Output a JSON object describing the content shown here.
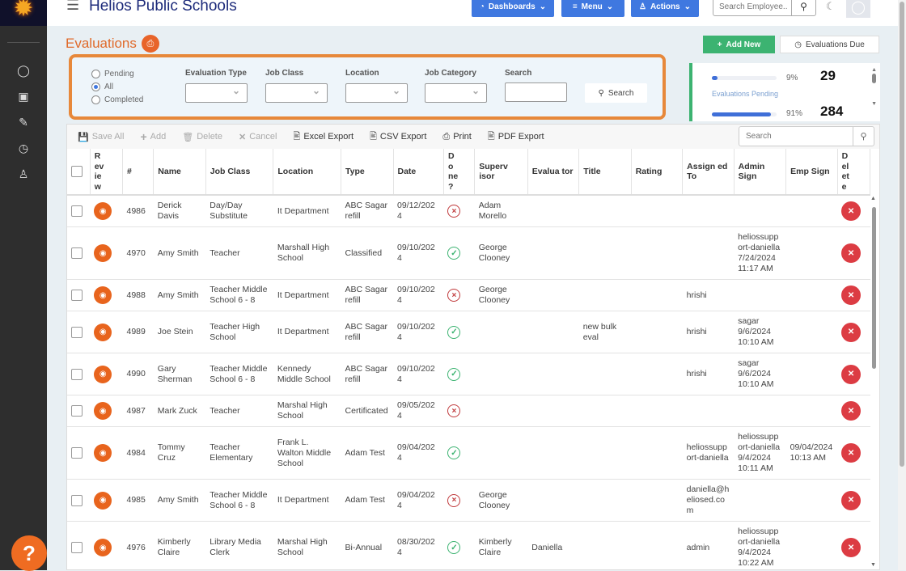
{
  "app": {
    "title": "Helios Public Schools",
    "accent": "#3f78e0",
    "brand_orange": "#e8641d"
  },
  "sidebar": {
    "items": [
      {
        "icon": "user-icon"
      },
      {
        "icon": "briefcase-icon"
      },
      {
        "icon": "edit-icon"
      },
      {
        "icon": "clock-icon"
      },
      {
        "icon": "users-icon"
      }
    ],
    "help": "?"
  },
  "header": {
    "dashboards": "Dashboards",
    "menu": "Menu",
    "actions": "Actions",
    "search_placeholder": "Search Employee.."
  },
  "page": {
    "title": "Evaluations",
    "add_new": "Add New",
    "evaluations_due": "Evaluations Due"
  },
  "filters": {
    "radios": [
      {
        "label": "Pending",
        "checked": false
      },
      {
        "label": "All",
        "checked": true
      },
      {
        "label": "Completed",
        "checked": false
      }
    ],
    "evaluation_type": "Evaluation Type",
    "job_class": "Job Class",
    "location": "Location",
    "job_category": "Job Category",
    "search": "Search",
    "search_button": "Search"
  },
  "stats": {
    "pending_pct_label": "9%",
    "pending_pct": 9,
    "pending_count": "29",
    "pending_label": "Evaluations Pending",
    "second_pct_label": "91%",
    "second_pct": 91,
    "second_count": "284"
  },
  "toolbar": {
    "save_all": "Save All",
    "add": "Add",
    "delete": "Delete",
    "cancel": "Cancel",
    "excel": "Excel Export",
    "csv": "CSV Export",
    "print": "Print",
    "pdf": "PDF Export",
    "search_placeholder": "Search"
  },
  "columns": [
    "R ev ie w",
    "#",
    "Name",
    "Job Class",
    "Location",
    "Type",
    "Date",
    "D o ne ?",
    "Superv isor",
    "Evalua tor",
    "Title",
    "Rating",
    "Assign ed To",
    "Admin Sign",
    "Emp Sign",
    "D el et e"
  ],
  "rows": [
    {
      "id": "4986",
      "name": "Derick Davis",
      "job_class": "Day/Day Substitute",
      "location": "It Department",
      "type": "ABC Sagar refill",
      "date": "09/12/2024",
      "done": false,
      "supervisor": "Adam Morello",
      "evaluator": "",
      "title": "",
      "rating": "",
      "assigned_to": "",
      "admin_sign": "",
      "emp_sign": ""
    },
    {
      "id": "4970",
      "name": "Amy Smith",
      "job_class": "Teacher",
      "location": "Marshall High School",
      "type": "Classified",
      "date": "09/10/2024",
      "done": true,
      "supervisor": "George Clooney",
      "evaluator": "",
      "title": "",
      "rating": "",
      "assigned_to": "",
      "admin_sign": "heliossupport-daniella 7/24/2024 11:17 AM",
      "emp_sign": ""
    },
    {
      "id": "4988",
      "name": "Amy Smith",
      "job_class": "Teacher Middle School 6 - 8",
      "location": "It Department",
      "type": "ABC Sagar refill",
      "date": "09/10/2024",
      "done": false,
      "supervisor": "George Clooney",
      "evaluator": "",
      "title": "",
      "rating": "",
      "assigned_to": "hrishi",
      "admin_sign": "",
      "emp_sign": ""
    },
    {
      "id": "4989",
      "name": "Joe Stein",
      "job_class": "Teacher High School",
      "location": "It Department",
      "type": "ABC Sagar refill",
      "date": "09/10/2024",
      "done": true,
      "supervisor": "",
      "evaluator": "",
      "title": "new bulk eval",
      "rating": "",
      "assigned_to": "hrishi",
      "admin_sign": "sagar 9/6/2024 10:10 AM",
      "emp_sign": ""
    },
    {
      "id": "4990",
      "name": "Gary Sherman",
      "job_class": "Teacher Middle School 6 - 8",
      "location": "Kennedy Middle School",
      "type": "ABC Sagar refill",
      "date": "09/10/2024",
      "done": true,
      "supervisor": "",
      "evaluator": "",
      "title": "",
      "rating": "",
      "assigned_to": "hrishi",
      "admin_sign": "sagar 9/6/2024 10:10 AM",
      "emp_sign": ""
    },
    {
      "id": "4987",
      "name": "Mark Zuck",
      "job_class": "Teacher",
      "location": "Marshal High School",
      "type": "Certificated",
      "date": "09/05/2024",
      "done": false,
      "supervisor": "",
      "evaluator": "",
      "title": "",
      "rating": "",
      "assigned_to": "",
      "admin_sign": "",
      "emp_sign": ""
    },
    {
      "id": "4984",
      "name": "Tommy Cruz",
      "job_class": "Teacher Elementary",
      "location": "Frank L. Walton Middle School",
      "type": "Adam Test",
      "date": "09/04/2024",
      "done": true,
      "supervisor": "",
      "evaluator": "",
      "title": "",
      "rating": "",
      "assigned_to": "heliossupport-daniella",
      "admin_sign": "heliossupport-daniella 9/4/2024 10:11 AM",
      "emp_sign": "09/04/2024 10:13 AM"
    },
    {
      "id": "4985",
      "name": "Amy Smith",
      "job_class": "Teacher Middle School 6 - 8",
      "location": "It Department",
      "type": "Adam Test",
      "date": "09/04/2024",
      "done": false,
      "supervisor": "George Clooney",
      "evaluator": "",
      "title": "",
      "rating": "",
      "assigned_to": "daniella@heliosed.com",
      "admin_sign": "",
      "emp_sign": ""
    },
    {
      "id": "4976",
      "name": "Kimberly Claire",
      "job_class": "Library Media Clerk",
      "location": "Marshal High School",
      "type": "Bi-Annual",
      "date": "08/30/2024",
      "done": true,
      "supervisor": "Kimberly Claire",
      "evaluator": "Daniella",
      "title": "",
      "rating": "",
      "assigned_to": "admin",
      "admin_sign": "heliossupport-daniella 9/4/2024 10:22 AM",
      "emp_sign": ""
    }
  ]
}
